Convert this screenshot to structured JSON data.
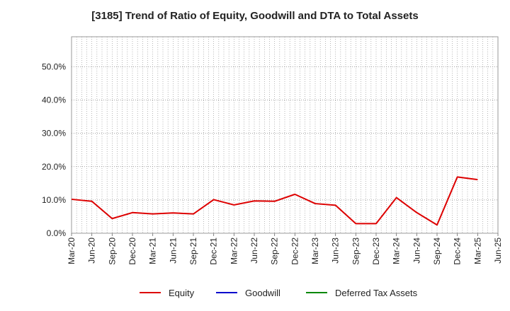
{
  "chart_data": {
    "type": "line",
    "title": "[3185]  Trend of Ratio of Equity, Goodwill and DTA to Total Assets",
    "xlabel": "",
    "ylabel": "",
    "categories": [
      "Mar-20",
      "Jun-20",
      "Sep-20",
      "Dec-20",
      "Mar-21",
      "Jun-21",
      "Sep-21",
      "Dec-21",
      "Mar-22",
      "Jun-22",
      "Sep-22",
      "Dec-22",
      "Mar-23",
      "Jun-23",
      "Sep-23",
      "Dec-23",
      "Mar-24",
      "Jun-24",
      "Sep-24",
      "Dec-24",
      "Mar-25",
      "Jun-25"
    ],
    "yticks": [
      "0.0%",
      "10.0%",
      "20.0%",
      "30.0%",
      "40.0%",
      "50.0%"
    ],
    "ylim": [
      0,
      0.5
    ],
    "y_axis_max": 0.59,
    "grid": true,
    "legend_position": "bottom",
    "series": [
      {
        "name": "Equity",
        "color": "#dd0000",
        "values": [
          0.102,
          0.096,
          0.044,
          0.062,
          0.058,
          0.061,
          0.058,
          0.101,
          0.085,
          0.097,
          0.096,
          0.117,
          0.089,
          0.084,
          0.029,
          0.029,
          0.107,
          0.062,
          0.025,
          0.169,
          0.161,
          null
        ]
      },
      {
        "name": "Goodwill",
        "color": "#0000cc",
        "values": [
          null,
          null,
          null,
          null,
          null,
          null,
          null,
          null,
          null,
          null,
          null,
          null,
          null,
          null,
          null,
          null,
          null,
          null,
          null,
          null,
          null,
          null
        ]
      },
      {
        "name": "Deferred Tax Assets",
        "color": "#008800",
        "values": [
          null,
          null,
          null,
          null,
          null,
          null,
          null,
          null,
          null,
          null,
          null,
          null,
          null,
          null,
          null,
          null,
          null,
          null,
          null,
          null,
          null,
          null
        ]
      }
    ]
  }
}
